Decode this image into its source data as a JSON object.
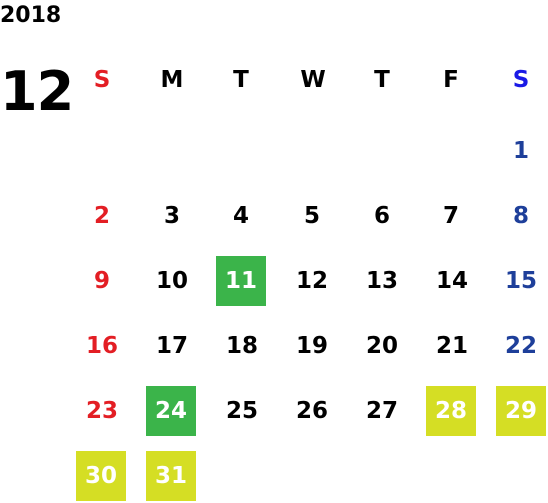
{
  "year": "2018",
  "month": "12",
  "weekdays": [
    "S",
    "M",
    "T",
    "W",
    "T",
    "F",
    "S"
  ],
  "days": {
    "d1": "1",
    "d2": "2",
    "d3": "3",
    "d4": "4",
    "d5": "5",
    "d6": "6",
    "d7": "7",
    "d8": "8",
    "d9": "9",
    "d10": "10",
    "d11": "11",
    "d12": "12",
    "d13": "13",
    "d14": "14",
    "d15": "15",
    "d16": "16",
    "d17": "17",
    "d18": "18",
    "d19": "19",
    "d20": "20",
    "d21": "21",
    "d22": "22",
    "d23": "23",
    "d24": "24",
    "d25": "25",
    "d26": "26",
    "d27": "27",
    "d28": "28",
    "d29": "29",
    "d30": "30",
    "d31": "31"
  },
  "colors": {
    "sunday": "#e31e24",
    "saturday_header": "#1a1ae6",
    "saturday": "#1e3f9a",
    "highlight_green": "#3bb44a",
    "highlight_lime": "#d5de24"
  },
  "highlights": {
    "green": [
      "11",
      "24"
    ],
    "lime": [
      "28",
      "29",
      "30",
      "31"
    ]
  }
}
